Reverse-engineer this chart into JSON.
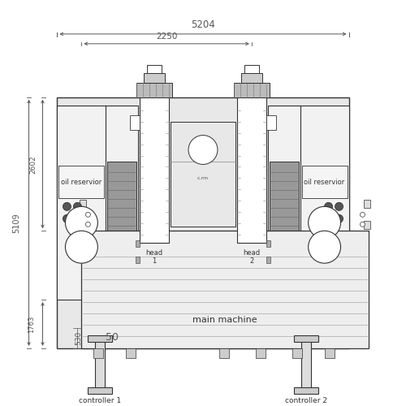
{
  "bg_color": "#ffffff",
  "line_color": "#333333",
  "dim_color": "#555555",
  "gray_fill": "#999999",
  "mid_gray": "#bbbbbb",
  "light_gray": "#e8e8e8",
  "white": "#ffffff",
  "dim_5204": "5204",
  "dim_2250": "2250",
  "dim_5109": "5109",
  "dim_2602": "2602",
  "dim_530": "530",
  "dim_50": "50",
  "dim_1763": "1763",
  "label_oil1": "oil reservior",
  "label_oil2": "oil reservior",
  "label_head1": "head\n1",
  "label_head2": "head\n2",
  "label_main": "main machine",
  "label_ctrl1": "controller 1",
  "label_ctrl2": "controller 2"
}
